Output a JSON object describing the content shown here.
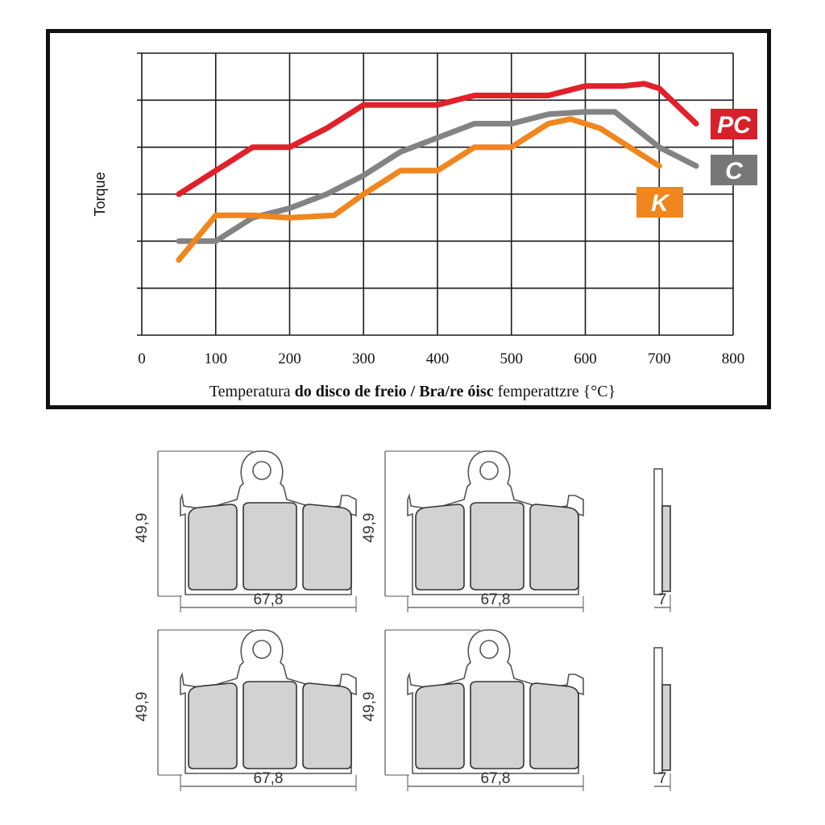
{
  "chart_data": {
    "type": "line",
    "title": "",
    "xlabel_parts": [
      {
        "text": "Temperatura ",
        "bold": false
      },
      {
        "text": "do disco de freio / Bra/re óisc",
        "bold": true
      },
      {
        "text": " femperattzre {°C}",
        "bold": false
      }
    ],
    "ylabel": "Torque",
    "xlim": [
      0,
      800
    ],
    "ylim": [
      0,
      6
    ],
    "x_ticks": [
      0,
      100,
      200,
      300,
      400,
      500,
      600,
      700,
      800
    ],
    "y_gridlines": [
      1,
      2,
      3,
      4,
      5,
      6
    ],
    "grid": true,
    "legend_placement": "right, label at end of each series",
    "series": [
      {
        "name": "PC",
        "color": "#e2202a",
        "label_color": "#d8202a",
        "points": [
          [
            50,
            3.0
          ],
          [
            100,
            3.5
          ],
          [
            150,
            4.0
          ],
          [
            200,
            4.0
          ],
          [
            250,
            4.4
          ],
          [
            300,
            4.9
          ],
          [
            350,
            4.9
          ],
          [
            400,
            4.9
          ],
          [
            450,
            5.1
          ],
          [
            500,
            5.1
          ],
          [
            550,
            5.1
          ],
          [
            600,
            5.3
          ],
          [
            650,
            5.3
          ],
          [
            680,
            5.35
          ],
          [
            700,
            5.25
          ],
          [
            750,
            4.5
          ]
        ]
      },
      {
        "name": "C",
        "color": "#838383",
        "label_color": "#777777",
        "points": [
          [
            50,
            2.0
          ],
          [
            100,
            2.0
          ],
          [
            150,
            2.5
          ],
          [
            200,
            2.7
          ],
          [
            250,
            3.0
          ],
          [
            300,
            3.4
          ],
          [
            350,
            3.9
          ],
          [
            400,
            4.2
          ],
          [
            450,
            4.5
          ],
          [
            500,
            4.5
          ],
          [
            550,
            4.7
          ],
          [
            600,
            4.75
          ],
          [
            640,
            4.75
          ],
          [
            700,
            4.0
          ],
          [
            750,
            3.6
          ]
        ]
      },
      {
        "name": "K",
        "color": "#f0861e",
        "label_color": "#f0861e",
        "points": [
          [
            50,
            1.6
          ],
          [
            100,
            2.55
          ],
          [
            150,
            2.55
          ],
          [
            200,
            2.5
          ],
          [
            260,
            2.55
          ],
          [
            300,
            3.0
          ],
          [
            350,
            3.5
          ],
          [
            400,
            3.5
          ],
          [
            450,
            4.0
          ],
          [
            500,
            4.0
          ],
          [
            550,
            4.5
          ],
          [
            580,
            4.6
          ],
          [
            620,
            4.4
          ],
          [
            660,
            4.0
          ],
          [
            700,
            3.6
          ]
        ]
      }
    ]
  },
  "drawings": {
    "height_label": "49,9",
    "width_label": "67,8",
    "thickness_label": "7",
    "pad_fill": "#d2d2d2"
  }
}
